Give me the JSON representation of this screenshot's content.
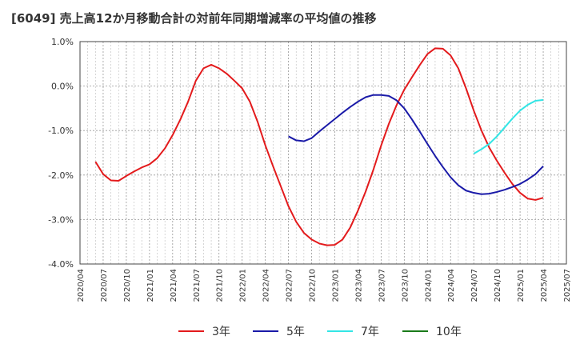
{
  "chart_data": {
    "type": "line",
    "title": "[6049]  売上高12か月移動合計の対前年同期増減率の平均値の推移",
    "xlabel": "",
    "ylabel": "",
    "ylim": [
      -4.0,
      1.0
    ],
    "yticks": [
      1.0,
      0.0,
      -1.0,
      -2.0,
      -3.0,
      -4.0
    ],
    "ytick_labels": [
      "1.0%",
      "0.0%",
      "-1.0%",
      "-2.0%",
      "-3.0%",
      "-4.0%"
    ],
    "x_range": [
      "2020/04",
      "2025/07"
    ],
    "xtick_labels": [
      "2020/04",
      "2020/07",
      "2020/10",
      "2021/01",
      "2021/04",
      "2021/07",
      "2021/10",
      "2022/01",
      "2022/04",
      "2022/07",
      "2022/10",
      "2023/01",
      "2023/04",
      "2023/07",
      "2023/10",
      "2024/01",
      "2024/04",
      "2024/07",
      "2024/10",
      "2025/01",
      "2025/04",
      "2025/07"
    ],
    "grid": true,
    "legend_position": "bottom",
    "series": [
      {
        "name": "3年",
        "color": "#e31a1c",
        "x": [
          "2020/06",
          "2020/07",
          "2020/08",
          "2020/09",
          "2020/10",
          "2020/11",
          "2020/12",
          "2021/01",
          "2021/02",
          "2021/03",
          "2021/04",
          "2021/05",
          "2021/06",
          "2021/07",
          "2021/08",
          "2021/09",
          "2021/10",
          "2021/11",
          "2021/12",
          "2022/01",
          "2022/02",
          "2022/03",
          "2022/04",
          "2022/05",
          "2022/06",
          "2022/07",
          "2022/08",
          "2022/09",
          "2022/10",
          "2022/11",
          "2022/12",
          "2023/01",
          "2023/02",
          "2023/03",
          "2023/04",
          "2023/05",
          "2023/06",
          "2023/07",
          "2023/08",
          "2023/09",
          "2023/10",
          "2023/11",
          "2023/12",
          "2024/01",
          "2024/02",
          "2024/03",
          "2024/04",
          "2024/05",
          "2024/06",
          "2024/07",
          "2024/08",
          "2024/09",
          "2024/10",
          "2024/11",
          "2024/12",
          "2025/01",
          "2025/02",
          "2025/03",
          "2025/04"
        ],
        "values": [
          -1.7,
          -1.98,
          -2.12,
          -2.13,
          -2.02,
          -1.92,
          -1.83,
          -1.76,
          -1.62,
          -1.4,
          -1.1,
          -0.75,
          -0.35,
          0.12,
          0.4,
          0.48,
          0.4,
          0.28,
          0.12,
          -0.05,
          -0.35,
          -0.8,
          -1.33,
          -1.8,
          -2.25,
          -2.7,
          -3.05,
          -3.3,
          -3.45,
          -3.54,
          -3.58,
          -3.57,
          -3.45,
          -3.18,
          -2.8,
          -2.37,
          -1.88,
          -1.34,
          -0.85,
          -0.43,
          -0.08,
          0.2,
          0.47,
          0.72,
          0.85,
          0.84,
          0.69,
          0.4,
          -0.05,
          -0.55,
          -1.0,
          -1.38,
          -1.68,
          -1.95,
          -2.2,
          -2.4,
          -2.53,
          -2.56,
          -2.51
        ]
      },
      {
        "name": "5年",
        "color": "#1a1aa8",
        "x": [
          "2022/07",
          "2022/08",
          "2022/09",
          "2022/10",
          "2022/11",
          "2022/12",
          "2023/01",
          "2023/02",
          "2023/03",
          "2023/04",
          "2023/05",
          "2023/06",
          "2023/07",
          "2023/08",
          "2023/09",
          "2023/10",
          "2023/11",
          "2023/12",
          "2024/01",
          "2024/02",
          "2024/03",
          "2024/04",
          "2024/05",
          "2024/06",
          "2024/07",
          "2024/08",
          "2024/09",
          "2024/10",
          "2024/11",
          "2024/12",
          "2025/01",
          "2025/02",
          "2025/03",
          "2025/04"
        ],
        "values": [
          -1.13,
          -1.22,
          -1.24,
          -1.17,
          -1.02,
          -0.88,
          -0.74,
          -0.6,
          -0.47,
          -0.35,
          -0.25,
          -0.2,
          -0.2,
          -0.22,
          -0.32,
          -0.5,
          -0.75,
          -1.02,
          -1.3,
          -1.57,
          -1.82,
          -2.05,
          -2.23,
          -2.35,
          -2.4,
          -2.43,
          -2.42,
          -2.38,
          -2.33,
          -2.27,
          -2.2,
          -2.1,
          -1.98,
          -1.8
        ]
      },
      {
        "name": "7年",
        "color": "#33e5e5",
        "x": [
          "2024/07",
          "2024/08",
          "2024/09",
          "2024/10",
          "2024/11",
          "2024/12",
          "2025/01",
          "2025/02",
          "2025/03",
          "2025/04"
        ],
        "values": [
          -1.52,
          -1.42,
          -1.3,
          -1.13,
          -0.93,
          -0.73,
          -0.55,
          -0.42,
          -0.33,
          -0.31
        ]
      },
      {
        "name": "10年",
        "color": "#1a7a1a",
        "x": [],
        "values": []
      }
    ]
  }
}
